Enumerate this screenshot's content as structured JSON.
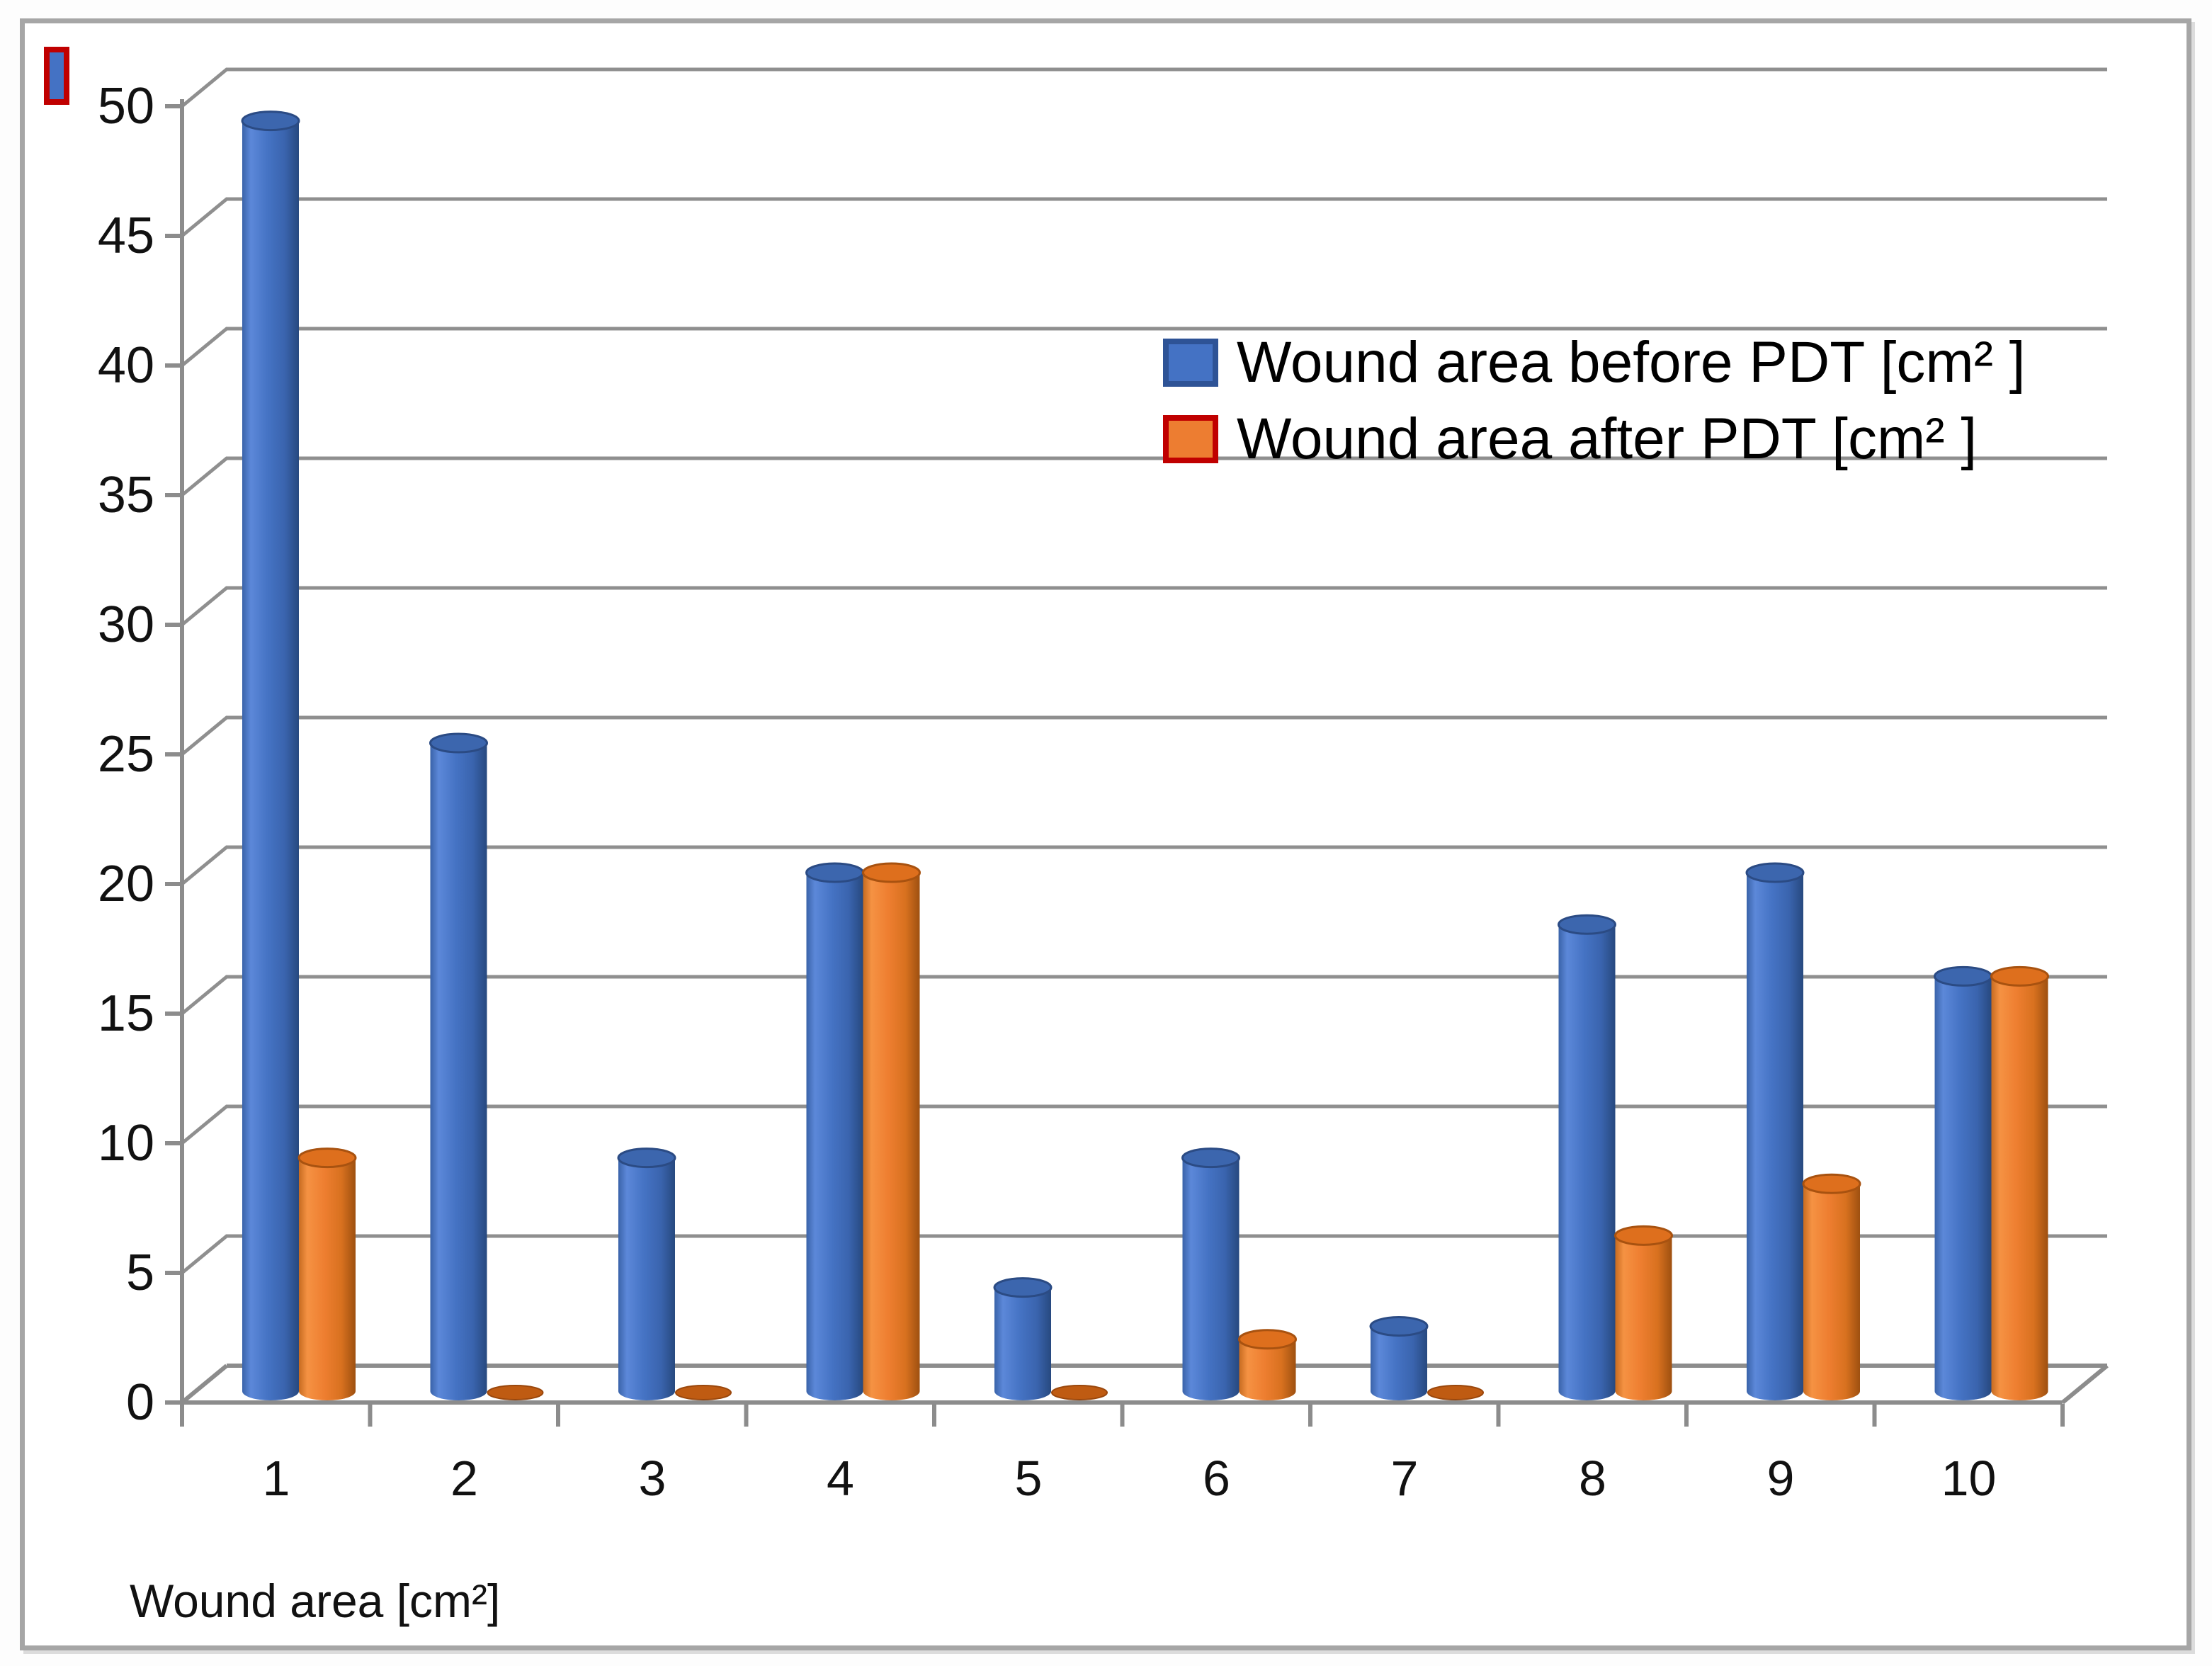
{
  "chart_data": {
    "type": "bar",
    "subtype": "3d-cylinder",
    "title": "",
    "xlabel": "Wound area [cm²]",
    "ylabel": "",
    "categories": [
      "1",
      "2",
      "3",
      "4",
      "5",
      "6",
      "7",
      "8",
      "9",
      "10"
    ],
    "series": [
      {
        "name": "Wound area before PDT [cm² ]",
        "color": "#4472C4",
        "values": [
          49,
          25,
          9,
          20,
          4,
          9,
          2.5,
          18,
          20,
          16
        ]
      },
      {
        "name": "Wound area after PDT [cm² ]",
        "color": "#ED7D31",
        "values": [
          9,
          0.2,
          0.2,
          20,
          0.2,
          2,
          0.2,
          6,
          8,
          16
        ]
      }
    ],
    "ylim": [
      0,
      50
    ],
    "ytick_step": 5,
    "grid": true,
    "legend_position": "upper-right-inside"
  },
  "colors": {
    "before": {
      "body": [
        "#3A63A9",
        "#5C88D9",
        "#4573C4",
        "#3A64AE",
        "#27497F"
      ],
      "top": "#3C66AE",
      "topStroke": "#2B4B84",
      "swatch": "#4472C4",
      "swatchBorder": "#2E5396"
    },
    "after": {
      "body": [
        "#C76B20",
        "#F59243",
        "#EE7E30",
        "#D8711F",
        "#9E5010"
      ],
      "top": "#DE6F1D",
      "topStroke": "#A85210",
      "flat": "#BF5B12",
      "flatStroke": "#9A470C",
      "swatch": "#ED7D31",
      "swatchBorder": "#C00000"
    },
    "gridline": "#8f8f8f",
    "axis": "#8c8c8c",
    "text": "#111111",
    "frame_border": "#a6a6a6",
    "frame_shadow": "#d9d9d9"
  },
  "mini_key": {
    "fill": "#4472C4",
    "border": "#C00000"
  }
}
